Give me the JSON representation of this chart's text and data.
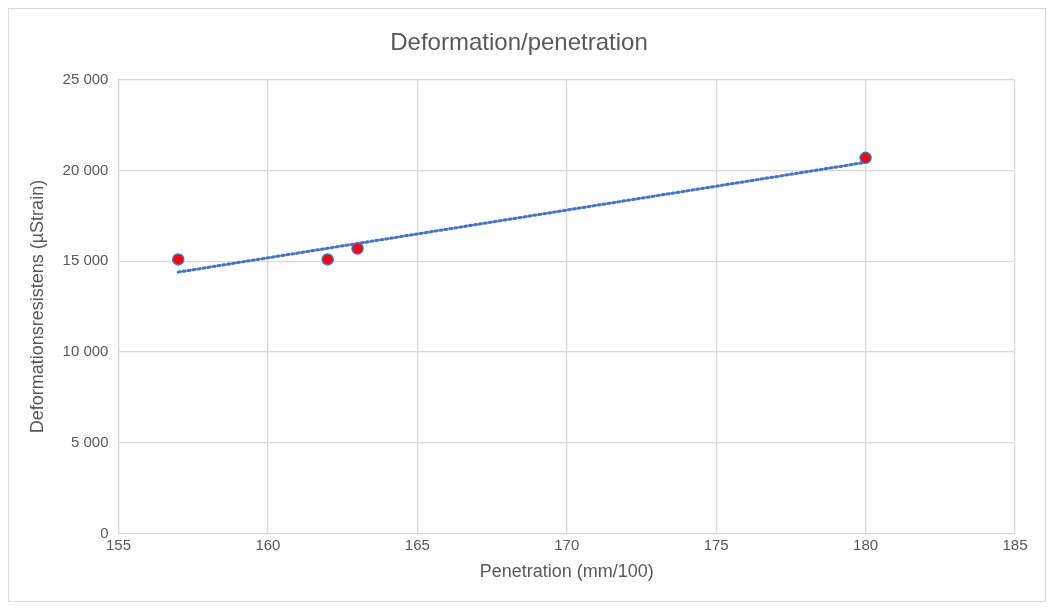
{
  "chart_data": {
    "type": "scatter",
    "title": "Deformation/penetration",
    "xlabel": "Penetration (mm/100)",
    "ylabel": "Deformationsresistens (µStrain)",
    "series": [
      {
        "color": "#ff0000",
        "x": [
          157,
          162,
          163,
          180
        ],
        "values": [
          15100,
          15100,
          15700,
          20700
        ],
        "marker": "circle"
      },
      {
        "type": "line",
        "color": "#4472c4",
        "x": [
          157,
          180
        ],
        "values": [
          14400,
          20450
        ],
        "line_style": "dotted",
        "marker": "none"
      }
    ],
    "xlim": [
      155,
      185
    ],
    "xticks": [
      155,
      160,
      165,
      170,
      175,
      180,
      185
    ],
    "ylim": [
      0,
      25000
    ],
    "yticks": [
      {
        "value": 0,
        "label": "0"
      },
      {
        "value": 5000,
        "label": "5 000"
      },
      {
        "value": 10000,
        "label": "10 000"
      },
      {
        "value": 15000,
        "label": "15 000"
      },
      {
        "value": 20000,
        "label": "20 000"
      },
      {
        "value": 25000,
        "label": "25 000"
      }
    ],
    "grid": true,
    "legend": false
  }
}
